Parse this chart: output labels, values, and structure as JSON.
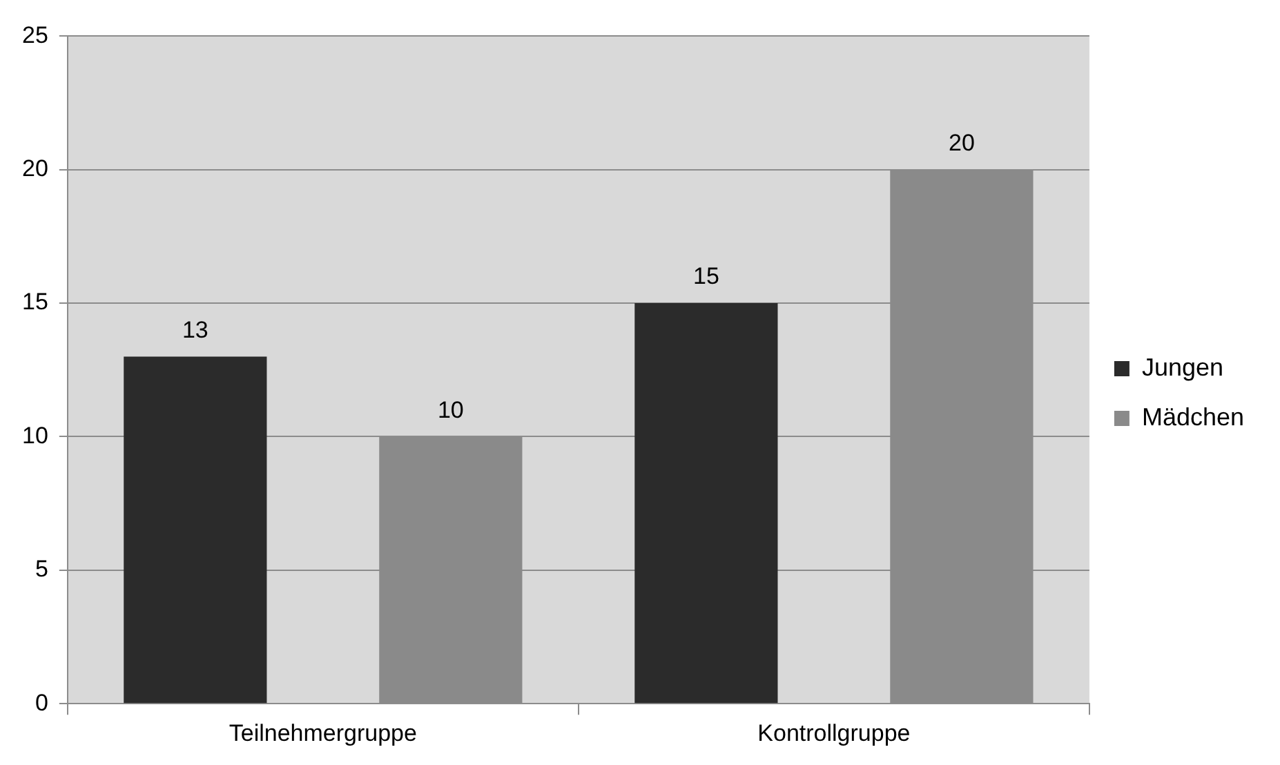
{
  "chart_data": {
    "type": "bar",
    "categories": [
      "Teilnehmergruppe",
      "Kontrollgruppe"
    ],
    "series": [
      {
        "name": "Jungen",
        "color": "#2b2b2b",
        "values": [
          13,
          15
        ]
      },
      {
        "name": "Mädchen",
        "color": "#8a8a8a",
        "values": [
          10,
          20
        ]
      }
    ],
    "ylim": [
      0,
      25
    ],
    "yticks": [
      0,
      5,
      10,
      15,
      20,
      25
    ],
    "grid": "y",
    "legend": "right",
    "data_labels": true
  }
}
